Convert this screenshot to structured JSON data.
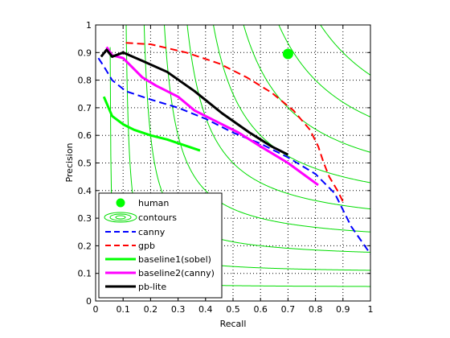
{
  "chart_data": {
    "type": "line",
    "xlabel": "Recall",
    "ylabel": "Precision",
    "xlim": [
      0,
      1
    ],
    "ylim": [
      0,
      1
    ],
    "grid": true,
    "legend_position": "bottom-left",
    "xticks": [
      "0",
      "0.1",
      "0.2",
      "0.3",
      "0.4",
      "0.5",
      "0.6",
      "0.7",
      "0.8",
      "0.9",
      "1"
    ],
    "yticks": [
      "0",
      "0.1",
      "0.2",
      "0.3",
      "0.4",
      "0.5",
      "0.6",
      "0.7",
      "0.8",
      "0.9",
      "1"
    ],
    "human": {
      "name": "human",
      "x": 0.7,
      "y": 0.895,
      "color": "#00ff00"
    },
    "contours": {
      "name": "contours",
      "color": "#00dd00",
      "f_levels": [
        0.1,
        0.2,
        0.3,
        0.4,
        0.5,
        0.6,
        0.7,
        0.8,
        0.9
      ]
    },
    "series": [
      {
        "name": "canny",
        "color": "#0000ff",
        "style": "dashed",
        "points": [
          [
            0.01,
            0.88
          ],
          [
            0.03,
            0.85
          ],
          [
            0.06,
            0.8
          ],
          [
            0.11,
            0.76
          ],
          [
            0.2,
            0.73
          ],
          [
            0.3,
            0.7
          ],
          [
            0.4,
            0.66
          ],
          [
            0.5,
            0.61
          ],
          [
            0.6,
            0.57
          ],
          [
            0.7,
            0.52
          ],
          [
            0.8,
            0.46
          ],
          [
            0.87,
            0.39
          ],
          [
            0.93,
            0.27
          ],
          [
            1.0,
            0.17
          ]
        ]
      },
      {
        "name": "gpb",
        "color": "#ff0000",
        "style": "dashed",
        "points": [
          [
            0.11,
            0.935
          ],
          [
            0.2,
            0.93
          ],
          [
            0.33,
            0.9
          ],
          [
            0.45,
            0.86
          ],
          [
            0.55,
            0.81
          ],
          [
            0.64,
            0.755
          ],
          [
            0.72,
            0.69
          ],
          [
            0.78,
            0.62
          ],
          [
            0.81,
            0.56
          ],
          [
            0.83,
            0.5
          ],
          [
            0.85,
            0.45
          ],
          [
            0.88,
            0.4
          ],
          [
            0.9,
            0.36
          ]
        ]
      },
      {
        "name": "baseline1(sobel)",
        "color": "#00ff00",
        "style": "solid",
        "points": [
          [
            0.03,
            0.74
          ],
          [
            0.06,
            0.67
          ],
          [
            0.1,
            0.64
          ],
          [
            0.14,
            0.62
          ],
          [
            0.2,
            0.6
          ],
          [
            0.26,
            0.585
          ],
          [
            0.32,
            0.565
          ],
          [
            0.38,
            0.545
          ]
        ]
      },
      {
        "name": "baseline2(canny)",
        "color": "#ff00ff",
        "style": "solid",
        "points": [
          [
            0.04,
            0.92
          ],
          [
            0.06,
            0.89
          ],
          [
            0.1,
            0.88
          ],
          [
            0.13,
            0.85
          ],
          [
            0.17,
            0.81
          ],
          [
            0.22,
            0.78
          ],
          [
            0.3,
            0.74
          ],
          [
            0.36,
            0.69
          ],
          [
            0.44,
            0.65
          ],
          [
            0.52,
            0.61
          ],
          [
            0.6,
            0.56
          ],
          [
            0.7,
            0.5
          ],
          [
            0.81,
            0.42
          ]
        ]
      },
      {
        "name": "pb-lite",
        "color": "#000000",
        "style": "solid",
        "points": [
          [
            0.02,
            0.885
          ],
          [
            0.04,
            0.91
          ],
          [
            0.06,
            0.885
          ],
          [
            0.1,
            0.9
          ],
          [
            0.17,
            0.87
          ],
          [
            0.26,
            0.83
          ],
          [
            0.36,
            0.76
          ],
          [
            0.46,
            0.68
          ],
          [
            0.56,
            0.61
          ],
          [
            0.64,
            0.56
          ],
          [
            0.7,
            0.53
          ]
        ]
      }
    ]
  }
}
